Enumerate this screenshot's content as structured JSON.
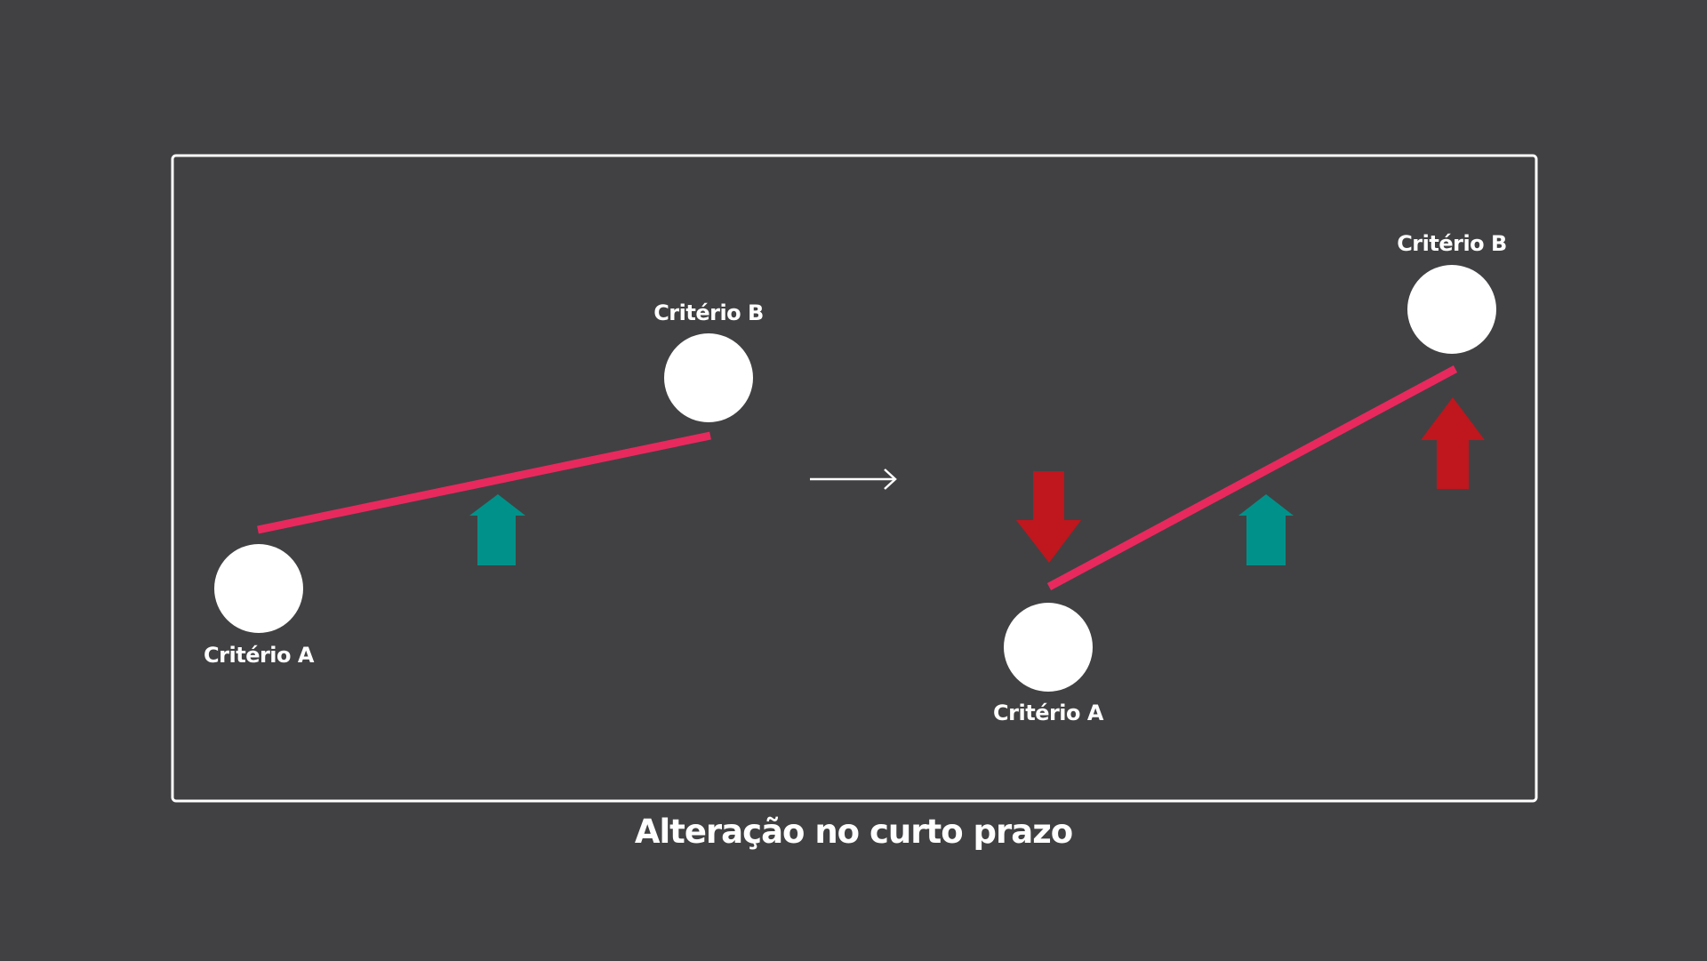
{
  "colors": {
    "background": "#414143",
    "frame": "#ffffff",
    "node": "#ffffff",
    "link_line": "#e8295e",
    "arrow_up_teal": "#00918a",
    "arrow_red": "#c0161e",
    "transition_arrow": "#ffffff"
  },
  "panels": {
    "before": {
      "node_a": {
        "label": "Critério A"
      },
      "node_b": {
        "label": "Critério B"
      },
      "change_arrows": [
        {
          "icon": "arrow-up-icon",
          "direction": "up",
          "color": "teal"
        }
      ]
    },
    "after": {
      "node_a": {
        "label": "Critério A"
      },
      "node_b": {
        "label": "Critério B"
      },
      "change_arrows": [
        {
          "icon": "arrow-down-icon",
          "direction": "down",
          "color": "red"
        },
        {
          "icon": "arrow-up-icon",
          "direction": "up",
          "color": "teal"
        },
        {
          "icon": "arrow-up-icon",
          "direction": "up",
          "color": "red"
        }
      ]
    }
  },
  "transition": {
    "icon": "right-arrow-icon"
  },
  "caption": "Alteração no curto prazo"
}
